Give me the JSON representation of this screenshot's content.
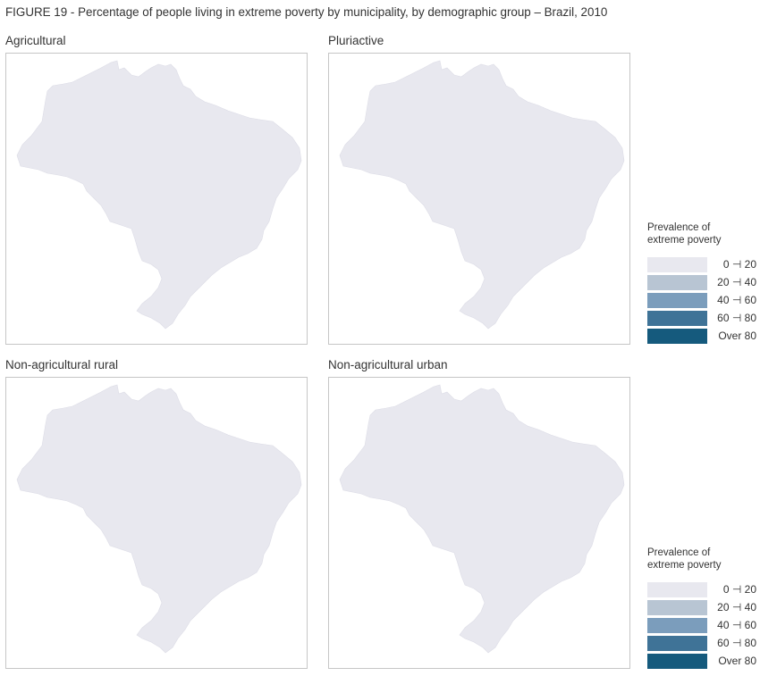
{
  "figure": {
    "title": "FIGURE 19 - Percentage of people living in extreme poverty by municipality, by demographic group – Brazil, 2010"
  },
  "legend": {
    "title_line1": "Prevalence of",
    "title_line2": "extreme poverty",
    "classes": [
      {
        "label": "0 ⊣ 20",
        "color": "#e8e8ef"
      },
      {
        "label": "20 ⊣ 40",
        "color": "#b8c5d3"
      },
      {
        "label": "40 ⊣ 60",
        "color": "#7b9dbc"
      },
      {
        "label": "60 ⊣ 80",
        "color": "#3f7397"
      },
      {
        "label": "Over 80",
        "color": "#155a7d"
      }
    ]
  },
  "panels": [
    {
      "title": "Agricultural",
      "fill_class_index": 0
    },
    {
      "title": "Pluriactive",
      "fill_class_index": 0
    },
    {
      "title": "Non-agricultural rural",
      "fill_class_index": 0
    },
    {
      "title": "Non-agricultural urban",
      "fill_class_index": 0
    }
  ]
}
